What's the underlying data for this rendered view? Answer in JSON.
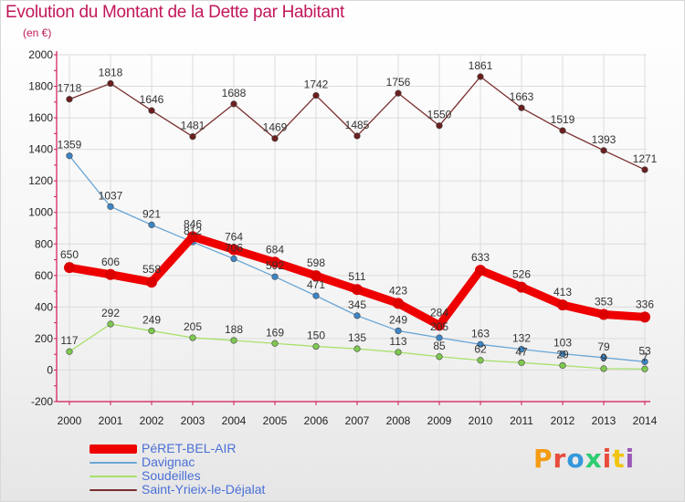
{
  "header": {
    "title": "Evolution du Montant de la Dette par Habitant",
    "subtitle": "(en €)"
  },
  "logo": {
    "text": "Proxiti",
    "colors": [
      "#f39c12",
      "#e74c3c",
      "#3498db",
      "#2ecc71",
      "#e74c3c",
      "#f1c40f",
      "#9b59b6"
    ]
  },
  "colors": {
    "title": "#c2185b",
    "axis": "#d4145a",
    "grid": "#dcdcdc",
    "legend_text": "#4a6fd6"
  },
  "chart_data": {
    "type": "line",
    "x": [
      2000,
      2001,
      2002,
      2003,
      2004,
      2005,
      2006,
      2007,
      2008,
      2009,
      2010,
      2011,
      2012,
      2013,
      2014
    ],
    "ylim": [
      -200,
      2000
    ],
    "yticks": [
      -200,
      0,
      200,
      400,
      600,
      800,
      1000,
      1200,
      1400,
      1600,
      1800,
      2000
    ],
    "grid": true,
    "legend_position": "bottom-left",
    "series": [
      {
        "name": "PéRET-BEL-AIR",
        "values": [
          650,
          606,
          558,
          846,
          764,
          684,
          598,
          511,
          423,
          284,
          633,
          526,
          413,
          353,
          336
        ],
        "labels": [
          "650",
          "606",
          "558",
          "846",
          "764",
          "684",
          "598",
          "511",
          "423",
          "284",
          "633",
          "526",
          "413",
          "353",
          "336"
        ],
        "color": "#ee0000",
        "marker": "#dd0000",
        "width": 9,
        "dot": 6
      },
      {
        "name": "Davignac",
        "values": [
          1359,
          1037,
          921,
          812,
          706,
          592,
          471,
          345,
          249,
          205,
          163,
          132,
          103,
          79,
          53
        ],
        "labels": [
          "1359",
          "1037",
          "921",
          "812",
          "706",
          "592",
          "471",
          "345",
          "249",
          "205",
          "163",
          "132",
          "103",
          "79",
          "53"
        ],
        "color": "#6aa6d6",
        "marker": "#3d85c6",
        "width": 1.3,
        "dot": 3.3
      },
      {
        "name": "Soudeilles",
        "values": [
          117,
          292,
          249,
          205,
          188,
          169,
          150,
          135,
          113,
          85,
          62,
          47,
          29,
          9,
          7
        ],
        "labels": [
          "117",
          "292",
          "249",
          "205",
          "188",
          "169",
          "150",
          "135",
          "113",
          "85",
          "62",
          "47",
          "29",
          "9",
          "7"
        ],
        "color": "#a8e06a",
        "marker": "#7ec850",
        "width": 1.3,
        "dot": 3.3
      },
      {
        "name": "Saint-Yrieix-le-Déjalat",
        "values": [
          1718,
          1818,
          1646,
          1481,
          1688,
          1469,
          1742,
          1485,
          1756,
          1550,
          1861,
          1663,
          1519,
          1393,
          1271
        ],
        "labels": [
          "1718",
          "1818",
          "1646",
          "1481",
          "1688",
          "1469",
          "1742",
          "1485",
          "1756",
          "1550",
          "1861",
          "1663",
          "1519",
          "1393",
          "1271"
        ],
        "color": "#7a2e2e",
        "marker": "#6b1f1f",
        "width": 1.3,
        "dot": 3.3
      }
    ]
  }
}
